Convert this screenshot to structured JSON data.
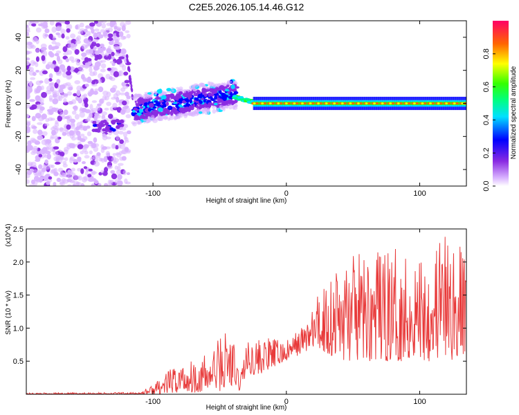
{
  "chart_data": [
    {
      "type": "heatmap",
      "title": "C2E5.2026.105.14.46.G12",
      "xlabel": "Height of straight line (km)",
      "ylabel": "Frequency (Hz)",
      "xlim": [
        -195,
        135
      ],
      "ylim": [
        -50,
        50
      ],
      "xticks": [
        -100,
        0,
        100
      ],
      "yticks": [
        -40,
        -20,
        0,
        20,
        40
      ],
      "colorbar": {
        "label": "Normalized spectral amplitude",
        "range": [
          0,
          1
        ],
        "ticks": [
          "0.0",
          "0.2",
          "0.4",
          "0.6",
          "0.8"
        ]
      },
      "regions": [
        {
          "name": "scattered noise",
          "x": [
            -195,
            -120
          ],
          "freq": [
            -50,
            50
          ],
          "amplitude": 0.03
        },
        {
          "name": "diagonal streak",
          "x": [
            -120,
            -115
          ],
          "freq": [
            20,
            50
          ],
          "amplitude": 0.05
        },
        {
          "name": "broadband band",
          "x": [
            -115,
            -40
          ],
          "freq_center": [
            -5,
            5
          ],
          "amplitude": 0.2
        },
        {
          "name": "narrow line",
          "x": [
            -40,
            135
          ],
          "freq": 0,
          "amplitude": 0.95
        }
      ]
    },
    {
      "type": "line",
      "xlabel": "Height of straight line (km)",
      "ylabel": "SNR (10 * v/v)",
      "y_multiplier": "(x10^4)",
      "xlim": [
        -195,
        135
      ],
      "ylim": [
        0,
        2.5
      ],
      "xticks": [
        -100,
        0,
        100
      ],
      "yticks": [
        0.5,
        1.0,
        1.5,
        2.0,
        2.5
      ],
      "color": "#e83a3a",
      "envelope": {
        "x": [
          -195,
          -110,
          -100,
          -80,
          -60,
          -50,
          -42,
          -35,
          -30,
          -20,
          -10,
          0,
          10,
          20,
          28,
          40,
          60,
          80,
          100,
          115,
          125,
          135
        ],
        "baseline": [
          0.0,
          0.0,
          0.0,
          0.02,
          0.03,
          0.05,
          0.05,
          0.05,
          0.3,
          0.3,
          0.4,
          0.5,
          0.6,
          0.7,
          0.6,
          0.5,
          0.5,
          0.5,
          0.5,
          0.5,
          0.5,
          0.6
        ],
        "peak": [
          0.02,
          0.03,
          0.15,
          0.5,
          0.6,
          0.9,
          1.12,
          0.3,
          0.8,
          0.85,
          0.85,
          0.8,
          1.0,
          1.3,
          1.8,
          2.05,
          2.15,
          2.2,
          2.25,
          2.5,
          2.3,
          2.2
        ]
      }
    }
  ]
}
